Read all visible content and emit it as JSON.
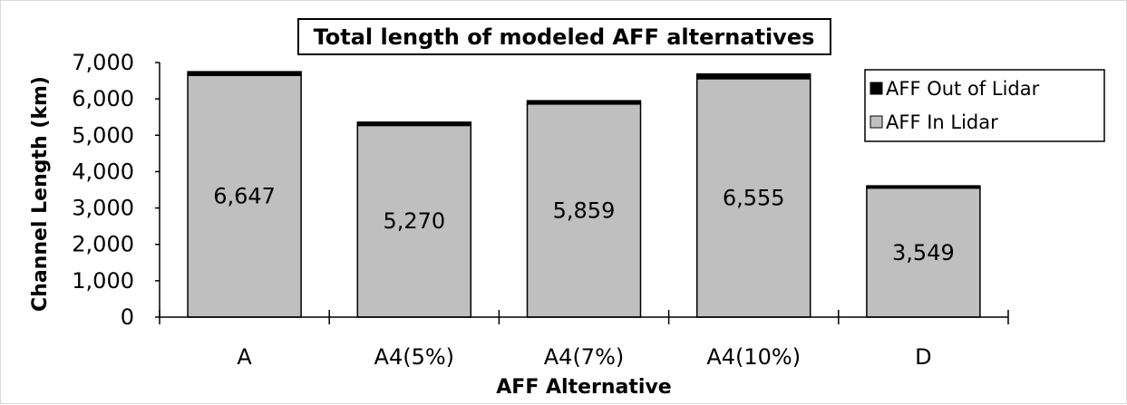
{
  "chart_data": {
    "type": "bar",
    "stacked": true,
    "title": "Total length of modeled AFF alternatives",
    "xlabel": "AFF Alternative",
    "ylabel": "Channel Length (km)",
    "ylim": [
      0,
      7000
    ],
    "yticks": [
      0,
      1000,
      2000,
      3000,
      4000,
      5000,
      6000,
      7000
    ],
    "ytick_labels": [
      "0",
      "1,000",
      "2,000",
      "3,000",
      "4,000",
      "5,000",
      "6,000",
      "7,000"
    ],
    "categories": [
      "A",
      "A4(5%)",
      "A4(7%)",
      "A4(10%)",
      "D"
    ],
    "series": [
      {
        "name": "AFF In Lidar",
        "color": "#bfbfbf",
        "values": [
          6647,
          5270,
          5859,
          6555,
          3549
        ],
        "labels": [
          "6,647",
          "5,270",
          "5,859",
          "6,555",
          "3,549"
        ]
      },
      {
        "name": "AFF Out of Lidar",
        "color": "#000000",
        "values": [
          100,
          90,
          90,
          130,
          60
        ]
      }
    ],
    "legend_position": "top-right",
    "legend_order": [
      "AFF Out of Lidar",
      "AFF In Lidar"
    ],
    "grid": false
  }
}
